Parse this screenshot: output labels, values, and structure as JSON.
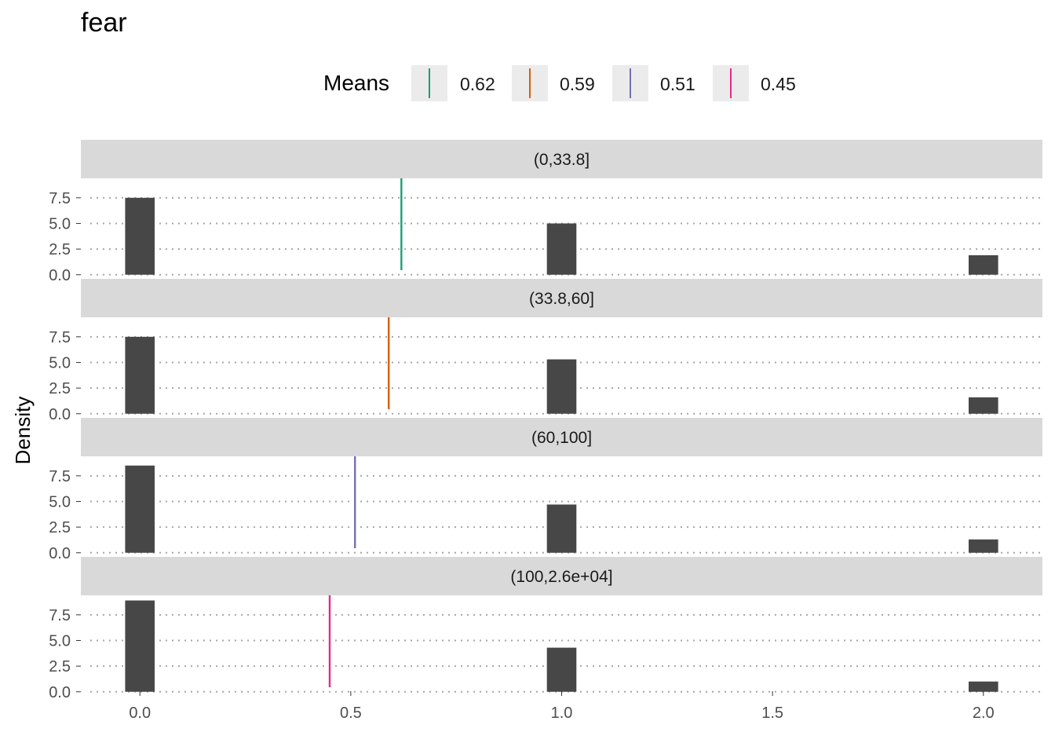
{
  "chart_data": {
    "type": "bar",
    "title": "fear",
    "ylabel": "Density",
    "xlabel": "",
    "x_ticks": [
      0.0,
      0.5,
      1.0,
      1.5,
      2.0
    ],
    "x_tick_labels": [
      "0.0",
      "0.5",
      "1.0",
      "1.5",
      "2.0"
    ],
    "xlim": [
      -0.14,
      2.14
    ],
    "y_ticks": [
      0.0,
      2.5,
      5.0,
      7.5
    ],
    "y_tick_labels": [
      "0.0",
      "2.5",
      "5.0",
      "7.5"
    ],
    "ylim": [
      -0.4,
      9.4
    ],
    "bin_width": 0.07,
    "legend": {
      "title": "Means",
      "position": "top",
      "entries": [
        {
          "label": "0.62",
          "color": "#1b9e77"
        },
        {
          "label": "0.59",
          "color": "#d95f02"
        },
        {
          "label": "0.51",
          "color": "#7570b3"
        },
        {
          "label": "0.45",
          "color": "#e7298a"
        }
      ]
    },
    "panels": [
      {
        "strip": "(0,33.8]",
        "mean": 0.62,
        "color": "#1b9e77",
        "bars": [
          {
            "x": 0,
            "y": 7.5
          },
          {
            "x": 1,
            "y": 5.0
          },
          {
            "x": 2,
            "y": 1.9
          }
        ]
      },
      {
        "strip": "(33.8,60]",
        "mean": 0.59,
        "color": "#d95f02",
        "bars": [
          {
            "x": 0,
            "y": 7.5
          },
          {
            "x": 1,
            "y": 5.3
          },
          {
            "x": 2,
            "y": 1.6
          }
        ]
      },
      {
        "strip": "(60,100]",
        "mean": 0.51,
        "color": "#7570b3",
        "bars": [
          {
            "x": 0,
            "y": 8.5
          },
          {
            "x": 1,
            "y": 4.7
          },
          {
            "x": 2,
            "y": 1.3
          }
        ]
      },
      {
        "strip": "(100,2.6e+04]",
        "mean": 0.45,
        "color": "#e7298a",
        "bars": [
          {
            "x": 0,
            "y": 8.9
          },
          {
            "x": 1,
            "y": 4.3
          },
          {
            "x": 2,
            "y": 1.0
          }
        ]
      }
    ],
    "grid": {
      "major_y": true,
      "major_x": false,
      "style": "dotted"
    }
  }
}
